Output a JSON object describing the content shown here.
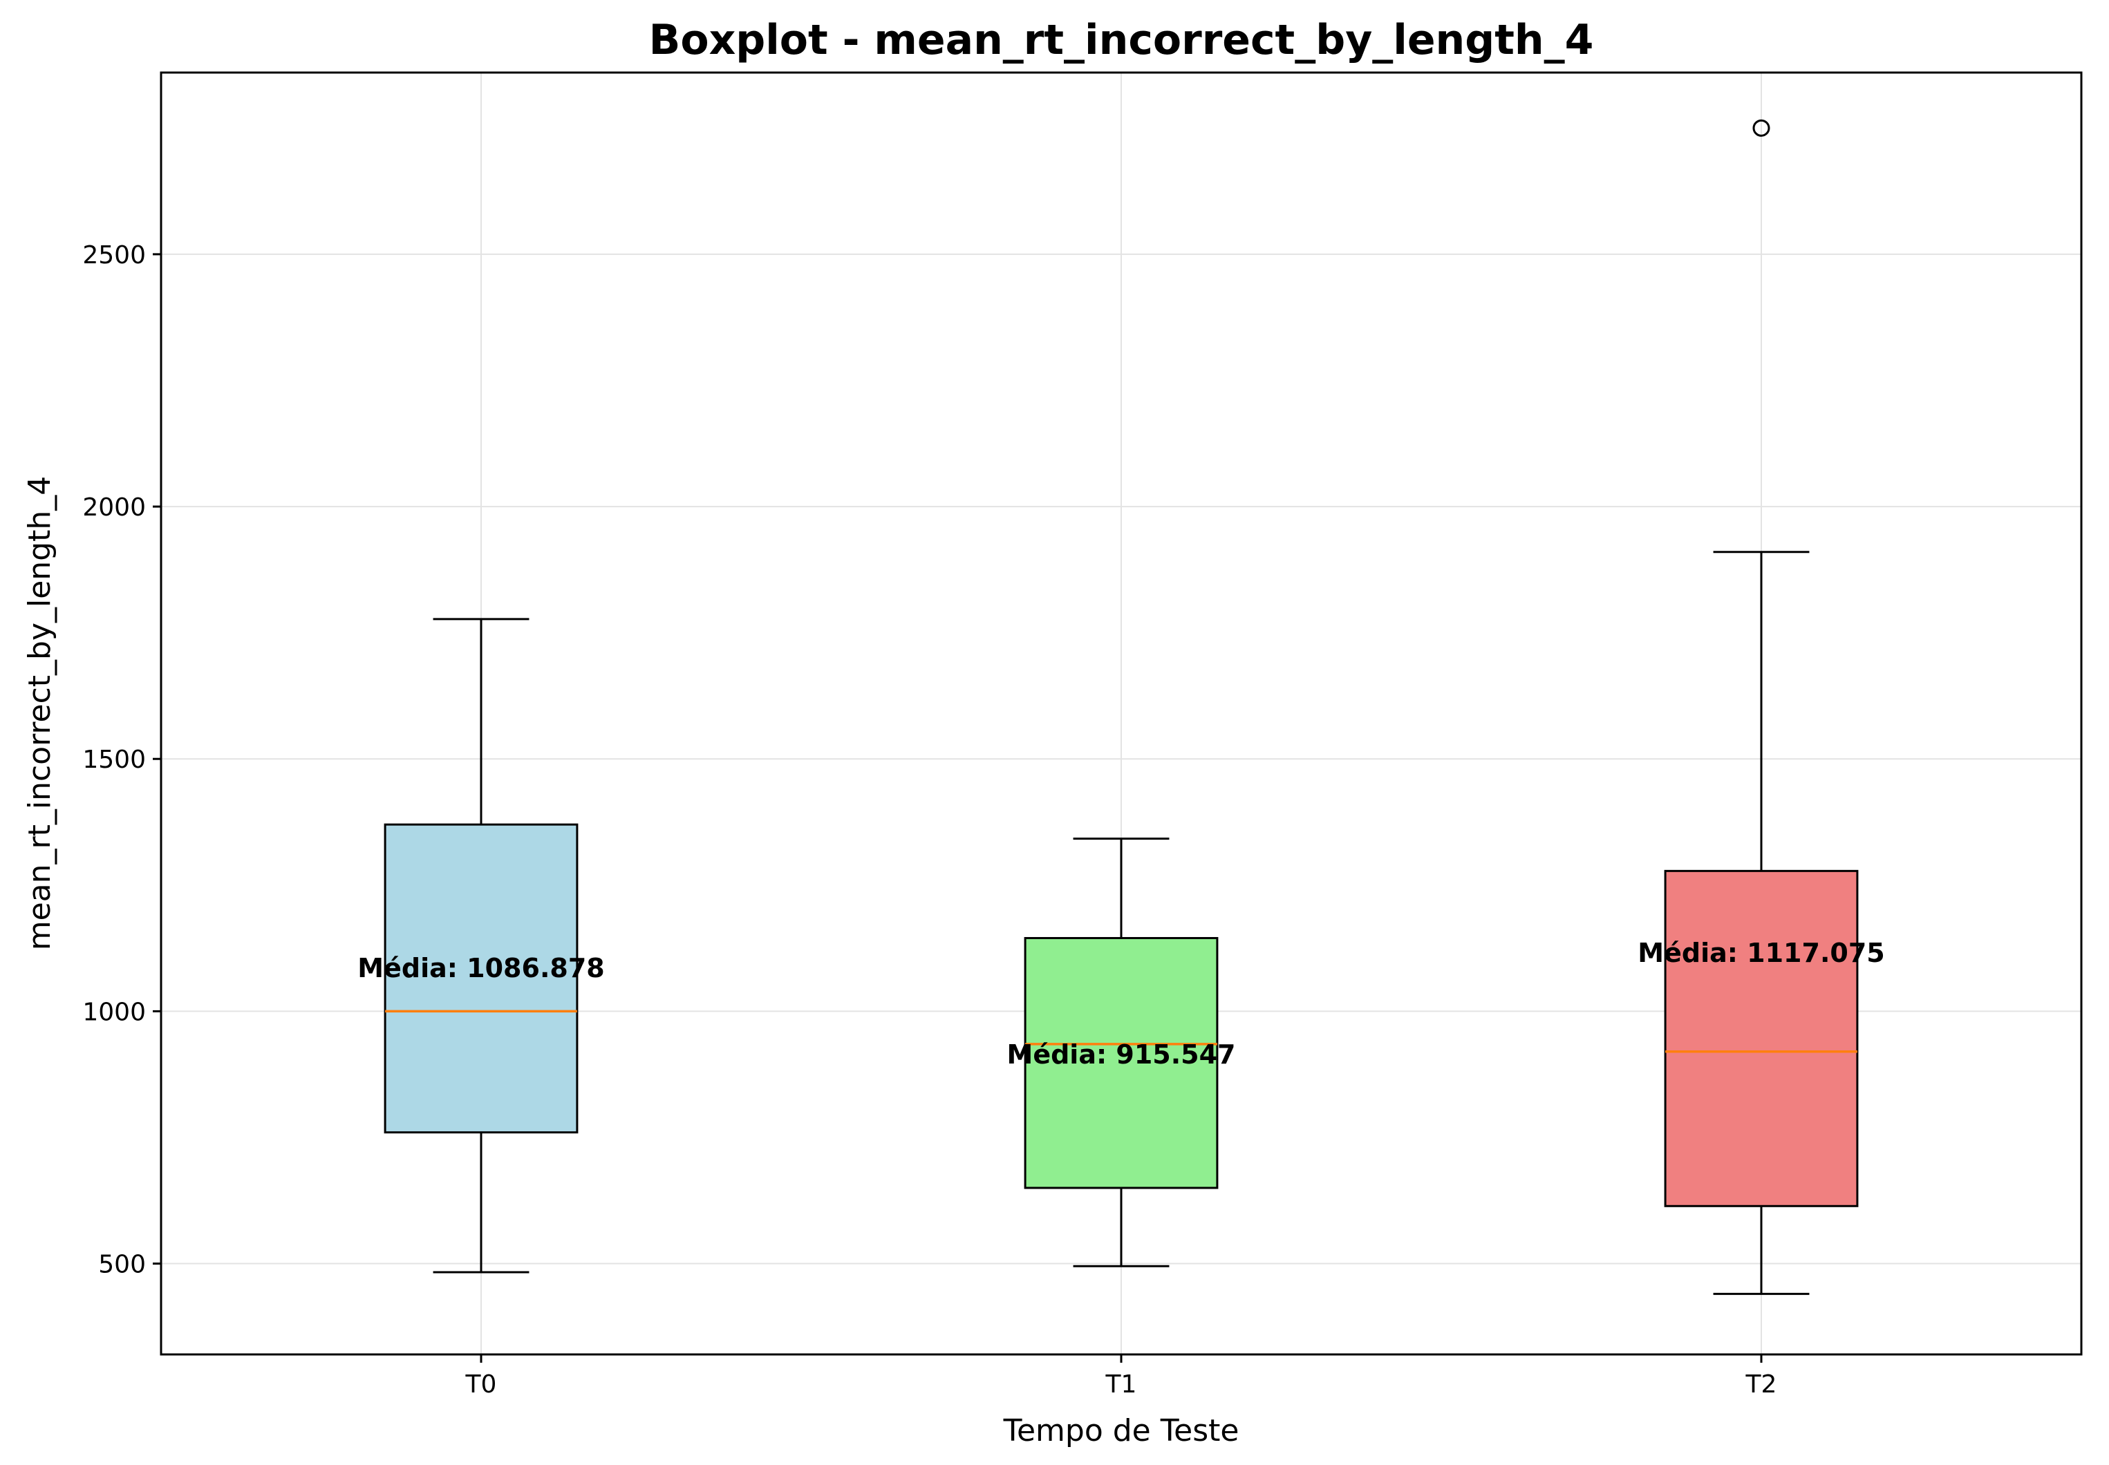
{
  "chart_data": {
    "type": "boxplot",
    "title": "Boxplot - mean_rt_incorrect_by_length_4",
    "xlabel": "Tempo de Teste",
    "ylabel": "mean_rt_incorrect_by_length_4",
    "ylim": [
      320,
      2860
    ],
    "yticks": [
      500,
      1000,
      1500,
      2000,
      2500
    ],
    "ytick_labels": [
      "500",
      "1000",
      "1500",
      "2000",
      "2500"
    ],
    "grid": true,
    "median_color": "#ff7f0e",
    "categories": [
      "T0",
      "T1",
      "T2"
    ],
    "boxes": [
      {
        "name": "T0",
        "whisker_low": 483,
        "q1": 760,
        "median": 1000,
        "q3": 1370,
        "whisker_high": 1777,
        "outliers": [],
        "mean": 1086.878,
        "mean_label": "Média: 1086.878",
        "color": "#add8e6"
      },
      {
        "name": "T1",
        "whisker_low": 495,
        "q1": 650,
        "median": 935,
        "q3": 1145,
        "whisker_high": 1342,
        "outliers": [],
        "mean": 915.547,
        "mean_label": "Média: 915.547",
        "color": "#90ee90"
      },
      {
        "name": "T2",
        "whisker_low": 440,
        "q1": 614,
        "median": 920,
        "q3": 1278,
        "whisker_high": 1910,
        "outliers": [
          2750
        ],
        "mean": 1117.075,
        "mean_label": "Média: 1117.075",
        "color": "#f08080"
      }
    ]
  }
}
